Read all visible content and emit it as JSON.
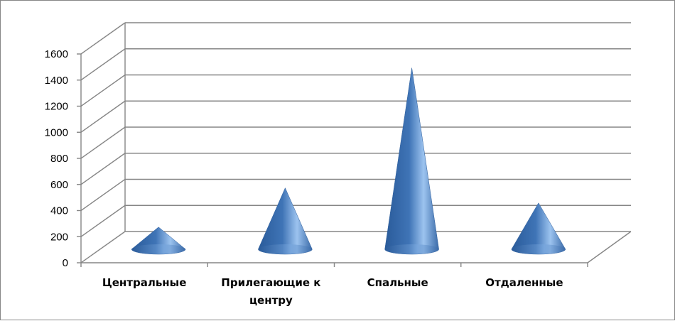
{
  "chart_data": {
    "type": "bar",
    "subtype": "3d-cone",
    "title": "",
    "xlabel": "",
    "ylabel": "",
    "categories": [
      [
        "Центральные"
      ],
      [
        "Прилегающие к",
        "центру"
      ],
      [
        "Спальные"
      ],
      [
        "Отдаленные"
      ]
    ],
    "series": [
      {
        "values": [
          230,
          530,
          1450,
          415
        ]
      }
    ],
    "ylim": [
      0,
      1600
    ],
    "yticks": [
      0,
      200,
      400,
      600,
      800,
      1000,
      1200,
      1400,
      1600
    ],
    "grid": true,
    "legend": "none",
    "colors": {
      "cone_dark": "#1f4e8c",
      "cone_mid": "#4a7ebb",
      "cone_light": "#9cc3ef",
      "grid": "#868686"
    }
  }
}
